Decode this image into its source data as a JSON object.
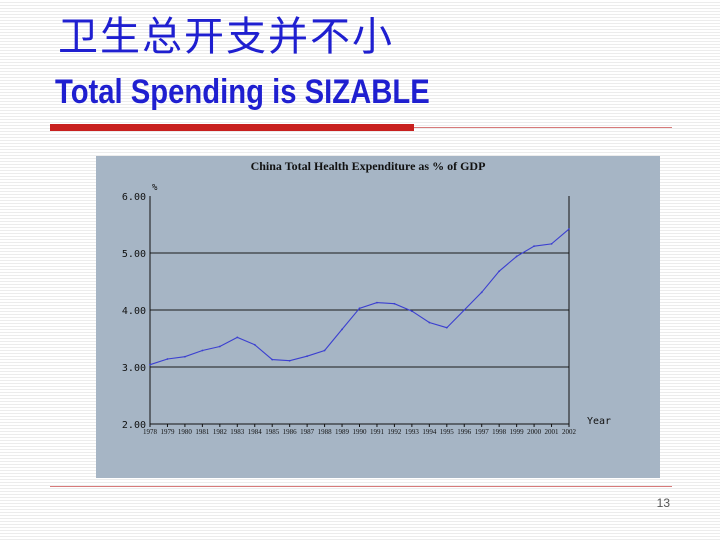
{
  "slide": {
    "title_cn": "卫生总开支并不小",
    "title_en": "Total Spending is SIZABLE",
    "page_number": "13"
  },
  "colors": {
    "title": "#1f1fd0",
    "accent_bar": "#c8201e",
    "panel_background": "#a6b5c5",
    "series_line": "#3b3fd0"
  },
  "chart_data": {
    "type": "line",
    "title": "China Total Health Expenditure as % of GDP",
    "ylabel": "%",
    "xlabel": "Year",
    "ylim": [
      2.0,
      6.0
    ],
    "yticks": [
      2.0,
      3.0,
      4.0,
      5.0,
      6.0
    ],
    "ytick_labels": [
      "2.00",
      "3.00",
      "4.00",
      "5.00",
      "6.00"
    ],
    "horizontal_grid": true,
    "x": [
      "1978",
      "1979",
      "1980",
      "1981",
      "1982",
      "1983",
      "1984",
      "1985",
      "1986",
      "1987",
      "1988",
      "1989",
      "1990",
      "1991",
      "1992",
      "1993",
      "1994",
      "1995",
      "1996",
      "1997",
      "1998",
      "1999",
      "2000",
      "2001",
      "2002"
    ],
    "series": [
      {
        "values": [
          3.04,
          3.14,
          3.18,
          3.29,
          3.36,
          3.52,
          3.39,
          3.13,
          3.11,
          3.19,
          3.29,
          3.66,
          4.03,
          4.13,
          4.11,
          3.98,
          3.78,
          3.69,
          4.0,
          4.31,
          4.68,
          4.94,
          5.12,
          5.16,
          5.42
        ]
      }
    ]
  }
}
